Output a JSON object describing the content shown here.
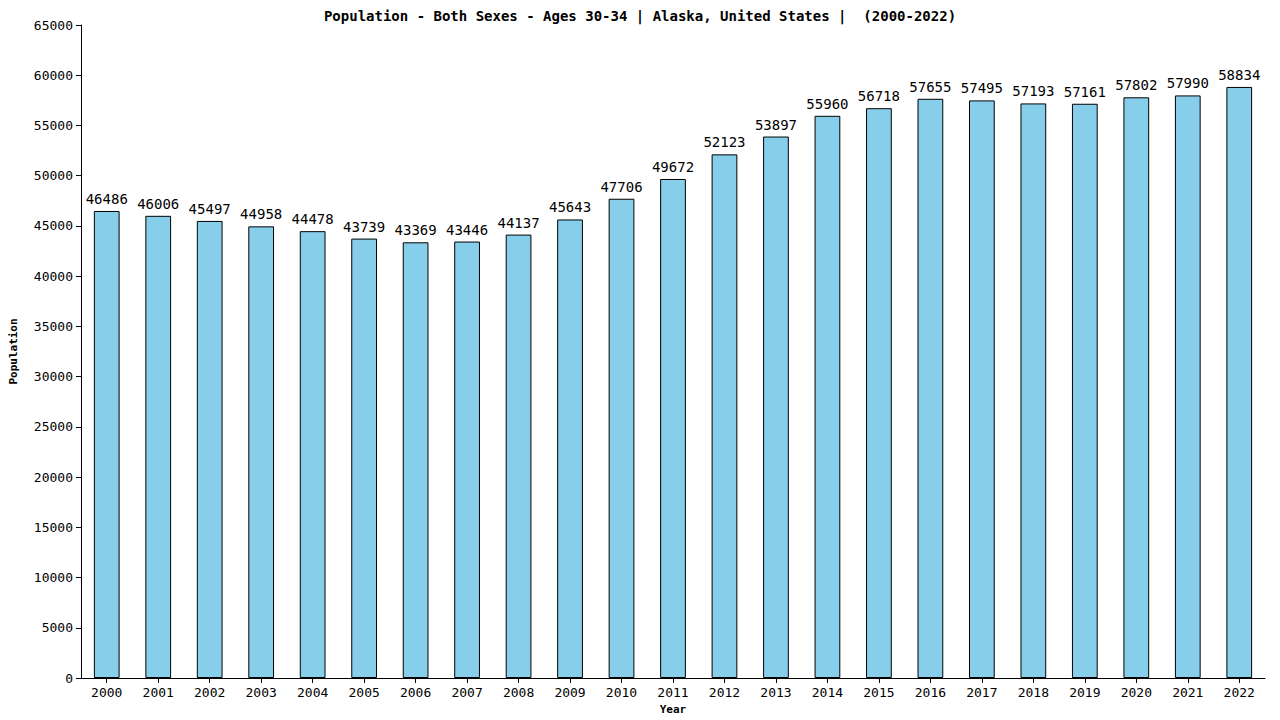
{
  "chart_data": {
    "type": "bar",
    "title": "Population - Both Sexes - Ages 30-34 | Alaska, United States |  (2000-2022)",
    "x_label": "Year",
    "y_label": "Population",
    "categories": [
      "2000",
      "2001",
      "2002",
      "2003",
      "2004",
      "2005",
      "2006",
      "2007",
      "2008",
      "2009",
      "2010",
      "2011",
      "2012",
      "2013",
      "2014",
      "2015",
      "2016",
      "2017",
      "2018",
      "2019",
      "2020",
      "2021",
      "2022"
    ],
    "values": [
      46486,
      46006,
      45497,
      44958,
      44478,
      43739,
      43369,
      43446,
      44137,
      45643,
      47706,
      49672,
      52123,
      53897,
      55960,
      56718,
      57655,
      57495,
      57193,
      57161,
      57802,
      57990,
      58834
    ],
    "color": "#87ceeb",
    "ylim": [
      0,
      65000
    ],
    "yticks": [
      0,
      5000,
      10000,
      15000,
      20000,
      25000,
      30000,
      35000,
      40000,
      45000,
      50000,
      55000,
      60000,
      65000
    ],
    "grid": false,
    "data_labels": true
  }
}
